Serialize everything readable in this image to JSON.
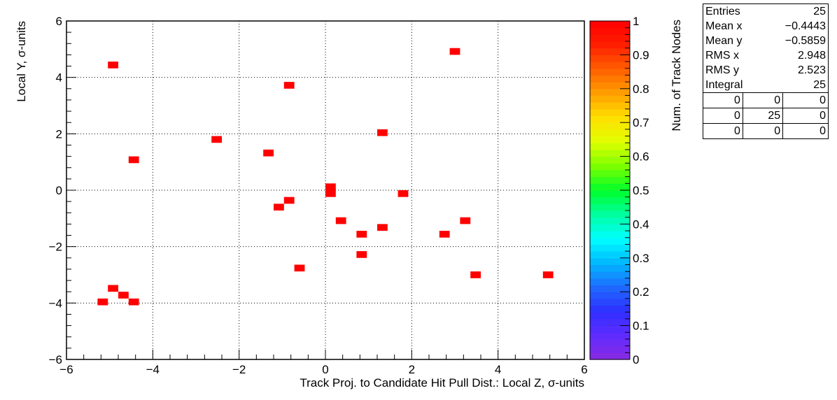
{
  "chart_data": {
    "type": "heatmap",
    "xlabel": "Track Proj. to Candidate Hit Pull Dist.: Local Z, σ-units",
    "ylabel": "Local Y, σ-units",
    "zlabel": "Num. of Track Nodes",
    "xlim": [
      -6,
      6
    ],
    "ylim": [
      -6,
      6
    ],
    "zlim": [
      0,
      1
    ],
    "grid": true,
    "x_ticks": [
      "−6",
      "−4",
      "−2",
      "0",
      "2",
      "4",
      "6"
    ],
    "y_ticks": [
      "−6",
      "−4",
      "−2",
      "0",
      "2",
      "4",
      "6"
    ],
    "z_ticks": [
      "0",
      "0.1",
      "0.2",
      "0.3",
      "0.4",
      "0.5",
      "0.6",
      "0.7",
      "0.8",
      "0.9",
      "1"
    ],
    "bin_width": [
      0.24,
      0.24
    ],
    "cells": [
      {
        "x": -4.92,
        "y": 4.44,
        "z": 1
      },
      {
        "x": -2.52,
        "y": 1.8,
        "z": 1
      },
      {
        "x": -4.44,
        "y": 1.08,
        "z": 1
      },
      {
        "x": -1.32,
        "y": 1.32,
        "z": 1
      },
      {
        "x": -0.84,
        "y": 3.72,
        "z": 1
      },
      {
        "x": 3.0,
        "y": 4.92,
        "z": 1
      },
      {
        "x": 1.32,
        "y": 2.04,
        "z": 1
      },
      {
        "x": 0.12,
        "y": 0.12,
        "z": 1
      },
      {
        "x": 0.12,
        "y": -0.12,
        "z": 1
      },
      {
        "x": 1.8,
        "y": -0.12,
        "z": 1
      },
      {
        "x": -0.84,
        "y": -0.36,
        "z": 1
      },
      {
        "x": -1.08,
        "y": -0.6,
        "z": 1
      },
      {
        "x": 0.36,
        "y": -1.08,
        "z": 1
      },
      {
        "x": 1.32,
        "y": -1.32,
        "z": 1
      },
      {
        "x": 0.84,
        "y": -1.56,
        "z": 1
      },
      {
        "x": 2.76,
        "y": -1.56,
        "z": 1
      },
      {
        "x": 3.24,
        "y": -1.08,
        "z": 1
      },
      {
        "x": 0.84,
        "y": -2.28,
        "z": 1
      },
      {
        "x": -0.6,
        "y": -2.76,
        "z": 1
      },
      {
        "x": 3.48,
        "y": -3.0,
        "z": 1
      },
      {
        "x": 5.16,
        "y": -3.0,
        "z": 1
      },
      {
        "x": -4.92,
        "y": -3.48,
        "z": 1
      },
      {
        "x": -4.68,
        "y": -3.72,
        "z": 1
      },
      {
        "x": -5.16,
        "y": -3.96,
        "z": 1
      },
      {
        "x": -4.44,
        "y": -3.96,
        "z": 1
      }
    ],
    "palette": [
      "#8a2be2",
      "#5f2cff",
      "#2f2fff",
      "#1f6bff",
      "#00b8ff",
      "#00ffff",
      "#00ffa0",
      "#00ff2a",
      "#7cff00",
      "#e0ff00",
      "#ffe000",
      "#ffa000",
      "#ff6000",
      "#ff2000",
      "#ff0000"
    ]
  },
  "stats": {
    "rows": [
      {
        "key": "Entries",
        "value": "25"
      },
      {
        "key": "Mean x",
        "value": "−0.4443"
      },
      {
        "key": "Mean y",
        "value": "−0.5859"
      },
      {
        "key": "RMS x",
        "value": "2.948"
      },
      {
        "key": "RMS y",
        "value": "2.523"
      },
      {
        "key": "Integral",
        "value": "25"
      }
    ],
    "grid": [
      [
        "0",
        "0",
        "0"
      ],
      [
        "0",
        "25",
        "0"
      ],
      [
        "0",
        "0",
        "0"
      ]
    ]
  }
}
